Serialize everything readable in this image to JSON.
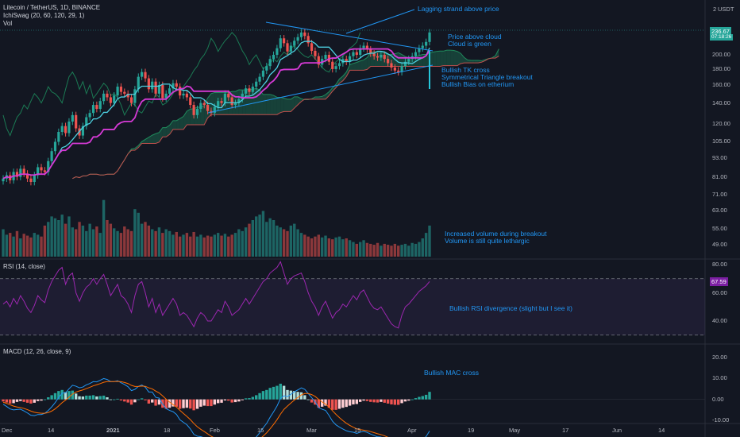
{
  "header": {
    "symbol_line": "Litecoin / TetherUS, 1D, BINANCE",
    "indicator_line": "IchiSwag (20, 60, 120, 29, 1)",
    "vol_line": "Vol",
    "rsi_line": "RSI (14, close)",
    "macd_line": "MACD (12, 26, close, 9)",
    "currency": "USDT",
    "scale_mode": "2",
    "last_price": "236.67",
    "countdown": "07:18:26",
    "last_rsi": "67.59"
  },
  "annotations": {
    "lagging": "Lagging strand above price",
    "cloud1": "Price above cloud",
    "cloud2": "Cloud is green",
    "tk1": "Bullish TK cross",
    "tk2": "Symmetrical Triangle breakout",
    "tk3": "Bullish Bias on etherium",
    "vol1": "Increased volume during breakout",
    "vol2": "Volume is still quite lethargic",
    "rsi": "Bullish RSI divergence  (slight but I see it)",
    "macd": "Bullish MAC cross"
  },
  "colors": {
    "background": "#131722",
    "up": "#26a69a",
    "down": "#ef5350",
    "tenkan": "#4dd0e1",
    "kijun": "#d63ad6",
    "lagging": "#1b7a54",
    "cloud_green": "#1b5e4a",
    "cloud_red": "#5a2a2a",
    "rsi": "#9c27b0",
    "macd": "#2196f3",
    "signal": "#ff6d00",
    "annotation": "#2196f3"
  },
  "chart_data": {
    "type": "candlestick",
    "price_scale": "log",
    "price_ticks": [
      200.0,
      180.0,
      160.0,
      140.0,
      120.0,
      105.0,
      93.0,
      81.0,
      71.0,
      63.0,
      55.0,
      49.0
    ],
    "rsi_ticks": [
      80.0,
      60.0,
      40.0
    ],
    "macd_ticks": [
      20.0,
      10.0,
      0.0,
      -10.0
    ],
    "x_ticks": [
      "Dec",
      "14",
      "2021",
      "18",
      "Feb",
      "15",
      "Mar",
      "15",
      "Apr",
      "19",
      "May",
      "17",
      "Jun",
      "14"
    ],
    "closes": [
      80,
      82,
      79,
      84,
      81,
      86,
      83,
      80,
      78,
      82,
      87,
      85,
      84,
      91,
      98,
      105,
      113,
      118,
      112,
      122,
      128,
      116,
      110,
      118,
      126,
      130,
      138,
      134,
      142,
      150,
      146,
      140,
      148,
      158,
      152,
      150,
      146,
      140,
      155,
      170,
      176,
      168,
      155,
      164,
      150,
      160,
      145,
      150,
      156,
      162,
      158,
      148,
      150,
      146,
      138,
      128,
      134,
      140,
      138,
      132,
      130,
      136,
      142,
      140,
      150,
      146,
      138,
      140,
      144,
      150,
      156,
      152,
      158,
      164,
      170,
      178,
      184,
      194,
      200,
      210,
      226,
      218,
      205,
      214,
      222,
      228,
      236,
      230,
      218,
      206,
      198,
      186,
      194,
      200,
      190,
      180,
      184,
      188,
      194,
      190,
      198,
      204,
      200,
      210,
      214,
      208,
      202,
      198,
      196,
      200,
      194,
      188,
      182,
      178,
      176,
      184,
      190,
      194,
      198,
      204,
      210,
      214,
      220,
      236
    ],
    "volumes": [
      30,
      24,
      26,
      22,
      28,
      20,
      25,
      23,
      21,
      26,
      24,
      22,
      34,
      38,
      44,
      42,
      40,
      46,
      36,
      44,
      32,
      30,
      38,
      34,
      28,
      36,
      30,
      33,
      26,
      62,
      40,
      36,
      31,
      28,
      26,
      33,
      30,
      28,
      52,
      48,
      36,
      38,
      34,
      30,
      28,
      32,
      26,
      30,
      28,
      24,
      27,
      22,
      24,
      26,
      22,
      27,
      22,
      24,
      21,
      23,
      22,
      24,
      26,
      23,
      25,
      22,
      24,
      26,
      30,
      28,
      32,
      36,
      40,
      44,
      46,
      50,
      38,
      42,
      40,
      34,
      32,
      30,
      28,
      34,
      36,
      30,
      26,
      24,
      22,
      20,
      22,
      24,
      21,
      23,
      20,
      19,
      21,
      22,
      19,
      20,
      18,
      16,
      14,
      16,
      18,
      15,
      14,
      13,
      15,
      12,
      14,
      13,
      12,
      14,
      12,
      13,
      14,
      12,
      15,
      14,
      16,
      20,
      26,
      34
    ],
    "rsi": [
      52,
      54,
      50,
      56,
      52,
      58,
      54,
      49,
      46,
      51,
      58,
      55,
      53,
      62,
      68,
      72,
      76,
      78,
      66,
      72,
      74,
      60,
      54,
      60,
      64,
      66,
      70,
      66,
      70,
      73,
      66,
      58,
      62,
      66,
      58,
      56,
      52,
      46,
      58,
      66,
      68,
      60,
      50,
      56,
      46,
      52,
      44,
      48,
      52,
      56,
      52,
      44,
      46,
      44,
      40,
      36,
      42,
      46,
      44,
      40,
      40,
      44,
      48,
      46,
      54,
      50,
      44,
      46,
      48,
      52,
      56,
      52,
      56,
      60,
      64,
      68,
      70,
      74,
      76,
      78,
      82,
      74,
      66,
      70,
      72,
      73,
      74,
      68,
      60,
      54,
      50,
      44,
      50,
      54,
      48,
      42,
      46,
      48,
      52,
      50,
      54,
      58,
      55,
      60,
      62,
      57,
      52,
      49,
      48,
      50,
      46,
      42,
      38,
      36,
      35,
      44,
      50,
      52,
      55,
      58,
      61,
      63,
      65,
      68
    ],
    "macd_hist": [
      -1,
      -1.5,
      -2,
      -1.8,
      -1.2,
      -0.8,
      -1.2,
      -1.6,
      -2,
      -1.6,
      -0.8,
      -0.6,
      0,
      1,
      2,
      3,
      4,
      4.5,
      3.5,
      4,
      4.2,
      2.8,
      1.5,
      1.4,
      1.8,
      1.8,
      2,
      1.4,
      1.6,
      1.8,
      1,
      0,
      0,
      0.3,
      -0.5,
      -1,
      -1.5,
      -2.5,
      -1.4,
      0,
      0.5,
      -0.4,
      -2,
      -1.5,
      -3,
      -2.5,
      -4,
      -4.5,
      -4,
      -3.4,
      -3.5,
      -4.5,
      -4.2,
      -4,
      -4.4,
      -5.2,
      -4.5,
      -3.5,
      -3,
      -3.2,
      -3.2,
      -2.5,
      -1.8,
      -1.6,
      -0.5,
      -0.6,
      -1.5,
      -1.3,
      -1,
      -0.4,
      0.5,
      0.6,
      1.2,
      2,
      3,
      4,
      4.5,
      5.5,
      6,
      6.5,
      7.5,
      6.5,
      4.5,
      4.2,
      4,
      3.6,
      3.4,
      2,
      0,
      -1.5,
      -2.5,
      -4,
      -3.5,
      -3,
      -4,
      -5,
      -5,
      -4.5,
      -4,
      -3.6,
      -3,
      -2.4,
      -2.2,
      -1.2,
      -0.6,
      -0.8,
      -1.2,
      -1.4,
      -1.5,
      -1.2,
      -1.6,
      -2,
      -2.4,
      -2.6,
      -2.6,
      -1.8,
      -1,
      -0.6,
      0,
      0.6,
      1.2,
      1.6,
      2.2,
      3.6
    ]
  }
}
